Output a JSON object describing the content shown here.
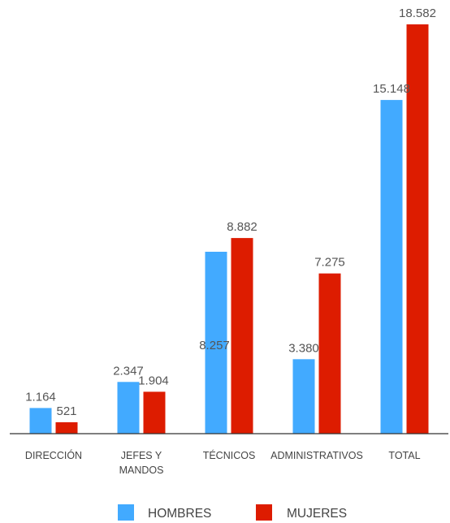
{
  "chart_data": {
    "type": "bar",
    "categories": [
      [
        "DIRECCIÓN"
      ],
      [
        "JEFES Y",
        "MANDOS"
      ],
      [
        "TÉCNICOS"
      ],
      [
        "ADMINISTRATIVOS"
      ],
      [
        "TOTAL"
      ]
    ],
    "series": [
      {
        "name": "HOMBRES",
        "color": "#42aaff",
        "values": [
          1164,
          2347,
          8257,
          3380,
          15148
        ],
        "labels": [
          "1.164",
          "2.347",
          "8.257",
          "3.380",
          "15.148"
        ]
      },
      {
        "name": "MUJERES",
        "color": "#dd1c00",
        "values": [
          521,
          1904,
          8882,
          7275,
          18582
        ],
        "labels": [
          "521",
          "1.904",
          "8.882",
          "7.275",
          "18.582"
        ]
      }
    ],
    "ylim": [
      0,
      19000
    ],
    "grid": false,
    "legend_position": "bottom"
  }
}
